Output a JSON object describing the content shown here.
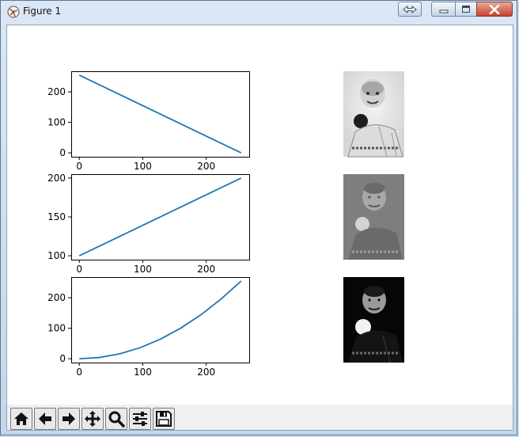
{
  "window": {
    "title": "Figure 1"
  },
  "toolbar": {
    "buttons": [
      {
        "name": "home-button",
        "icon": "home-icon"
      },
      {
        "name": "back-button",
        "icon": "arrow-left-icon"
      },
      {
        "name": "forward-button",
        "icon": "arrow-right-icon"
      },
      {
        "name": "pan-button",
        "icon": "move-icon"
      },
      {
        "name": "zoom-button",
        "icon": "zoom-icon"
      },
      {
        "name": "configure-subplots-button",
        "icon": "sliders-icon"
      },
      {
        "name": "save-button",
        "icon": "save-icon"
      }
    ]
  },
  "chart_data": [
    {
      "type": "line",
      "x": [
        0,
        255
      ],
      "series": [
        {
          "values": [
            255,
            0
          ],
          "color": "#1f77b4"
        }
      ],
      "xlim": [
        -12.75,
        267.75
      ],
      "ylim": [
        -12.75,
        267.75
      ],
      "xticks": [
        0,
        100,
        200
      ],
      "yticks": [
        0,
        100,
        200
      ]
    },
    {
      "type": "line",
      "x": [
        0,
        255
      ],
      "series": [
        {
          "values": [
            100,
            200
          ],
          "color": "#1f77b4"
        }
      ],
      "xlim": [
        -12.75,
        267.75
      ],
      "ylim": [
        95,
        205
      ],
      "xticks": [
        0,
        100,
        200
      ],
      "yticks": [
        100,
        150,
        200
      ]
    },
    {
      "type": "line",
      "function": "y = x^2 / 255",
      "x": [
        0,
        32,
        64,
        96,
        128,
        160,
        192,
        224,
        255
      ],
      "series": [
        {
          "values": [
            0,
            4.0,
            16.1,
            36.1,
            64.3,
            100.4,
            144.6,
            196.8,
            255
          ],
          "color": "#1f77b4"
        }
      ],
      "xlim": [
        -12.75,
        267.75
      ],
      "ylim": [
        -12.75,
        267.75
      ],
      "xticks": [
        0,
        100,
        200
      ],
      "yticks": [
        0,
        100,
        200
      ]
    }
  ],
  "images": [
    {
      "name": "transformed-image-inverted",
      "style": "inverted grayscale"
    },
    {
      "name": "transformed-image-compressed",
      "style": "low-contrast grayscale"
    },
    {
      "name": "transformed-image-squared",
      "style": "dark high-contrast grayscale"
    }
  ]
}
